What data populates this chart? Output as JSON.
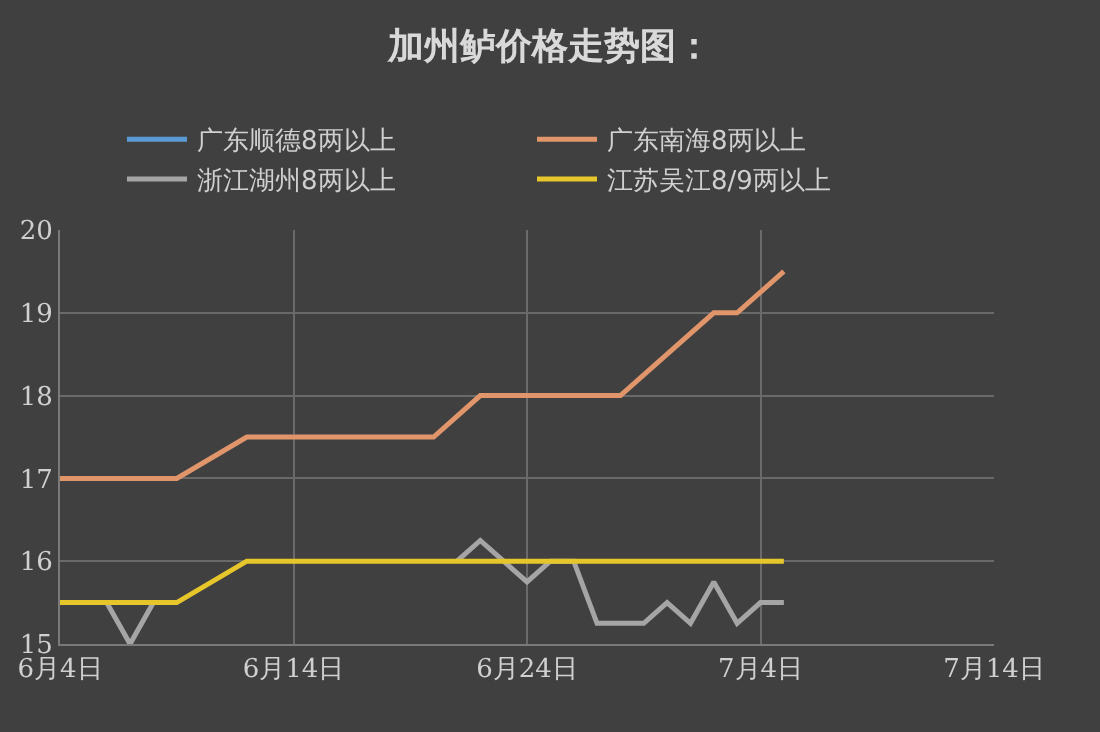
{
  "chart_data": {
    "type": "line",
    "title": "加州鲈价格走势图：",
    "xlim": [
      "--06-04",
      "--07-14"
    ],
    "xticks": [
      {
        "value": "--06-04",
        "label": "6月4日"
      },
      {
        "value": "--06-14",
        "label": "6月14日"
      },
      {
        "value": "--06-24",
        "label": "6月24日"
      },
      {
        "value": "--07-04",
        "label": "7月4日"
      },
      {
        "value": "--07-14",
        "label": "7月14日"
      }
    ],
    "ylim": [
      15,
      20
    ],
    "yticks": [
      15,
      16,
      17,
      18,
      19,
      20
    ],
    "grid": true,
    "legend": "top",
    "marker": "none",
    "line_style": "solid",
    "series": [
      {
        "name": "广东顺德8两以上",
        "color": "#5b9bd5"
      },
      {
        "name": "广东南海8两以上",
        "color": "#e0956a",
        "x": [
          "--06-04",
          "--06-09",
          "--06-12",
          "--06-20",
          "--06-22",
          "--06-28",
          "--07-02",
          "--07-03",
          "--07-04",
          "--07-05"
        ],
        "values": [
          17,
          17,
          17.5,
          17.5,
          18,
          18,
          19,
          19,
          19.25,
          19.5
        ]
      },
      {
        "name": "浙江湖州8两以上",
        "color": "#a5a5a5",
        "x": [
          "--06-06",
          "--06-07",
          "--06-08",
          "--06-09",
          "--06-21",
          "--06-22",
          "--06-23",
          "--06-24",
          "--06-25",
          "--06-26",
          "--06-27",
          "--06-28",
          "--06-29",
          "--06-30",
          "--07-01",
          "--07-02",
          "--07-03",
          "--07-04",
          "--07-05"
        ],
        "values": [
          15.5,
          15,
          15.5,
          null,
          16,
          16.25,
          16,
          15.75,
          16,
          16,
          15.25,
          15.25,
          15.25,
          15.5,
          15.25,
          15.75,
          15.25,
          15.5,
          15.5
        ]
      },
      {
        "name": "江苏吴江8/9两以上",
        "color": "#e6c62a",
        "x": [
          "--06-04",
          "--06-09",
          "--06-12",
          "--07-05"
        ],
        "values": [
          15.5,
          15.5,
          16,
          16
        ]
      }
    ]
  }
}
